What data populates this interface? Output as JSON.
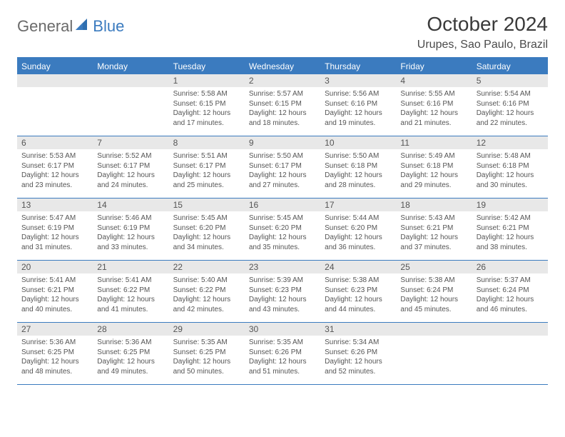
{
  "logo": {
    "text1": "General",
    "text2": "Blue"
  },
  "title": "October 2024",
  "location": "Urupes, Sao Paulo, Brazil",
  "colors": {
    "accent": "#3b7bbf",
    "header_bg": "#3b7bbf",
    "header_text": "#ffffff",
    "daynum_bg": "#e8e8e8",
    "body_text": "#555555",
    "page_bg": "#ffffff"
  },
  "weekdays": [
    "Sunday",
    "Monday",
    "Tuesday",
    "Wednesday",
    "Thursday",
    "Friday",
    "Saturday"
  ],
  "weeks": [
    [
      null,
      null,
      {
        "n": "1",
        "sr": "5:58 AM",
        "ss": "6:15 PM",
        "dl": "12 hours and 17 minutes."
      },
      {
        "n": "2",
        "sr": "5:57 AM",
        "ss": "6:15 PM",
        "dl": "12 hours and 18 minutes."
      },
      {
        "n": "3",
        "sr": "5:56 AM",
        "ss": "6:16 PM",
        "dl": "12 hours and 19 minutes."
      },
      {
        "n": "4",
        "sr": "5:55 AM",
        "ss": "6:16 PM",
        "dl": "12 hours and 21 minutes."
      },
      {
        "n": "5",
        "sr": "5:54 AM",
        "ss": "6:16 PM",
        "dl": "12 hours and 22 minutes."
      }
    ],
    [
      {
        "n": "6",
        "sr": "5:53 AM",
        "ss": "6:17 PM",
        "dl": "12 hours and 23 minutes."
      },
      {
        "n": "7",
        "sr": "5:52 AM",
        "ss": "6:17 PM",
        "dl": "12 hours and 24 minutes."
      },
      {
        "n": "8",
        "sr": "5:51 AM",
        "ss": "6:17 PM",
        "dl": "12 hours and 25 minutes."
      },
      {
        "n": "9",
        "sr": "5:50 AM",
        "ss": "6:17 PM",
        "dl": "12 hours and 27 minutes."
      },
      {
        "n": "10",
        "sr": "5:50 AM",
        "ss": "6:18 PM",
        "dl": "12 hours and 28 minutes."
      },
      {
        "n": "11",
        "sr": "5:49 AM",
        "ss": "6:18 PM",
        "dl": "12 hours and 29 minutes."
      },
      {
        "n": "12",
        "sr": "5:48 AM",
        "ss": "6:18 PM",
        "dl": "12 hours and 30 minutes."
      }
    ],
    [
      {
        "n": "13",
        "sr": "5:47 AM",
        "ss": "6:19 PM",
        "dl": "12 hours and 31 minutes."
      },
      {
        "n": "14",
        "sr": "5:46 AM",
        "ss": "6:19 PM",
        "dl": "12 hours and 33 minutes."
      },
      {
        "n": "15",
        "sr": "5:45 AM",
        "ss": "6:20 PM",
        "dl": "12 hours and 34 minutes."
      },
      {
        "n": "16",
        "sr": "5:45 AM",
        "ss": "6:20 PM",
        "dl": "12 hours and 35 minutes."
      },
      {
        "n": "17",
        "sr": "5:44 AM",
        "ss": "6:20 PM",
        "dl": "12 hours and 36 minutes."
      },
      {
        "n": "18",
        "sr": "5:43 AM",
        "ss": "6:21 PM",
        "dl": "12 hours and 37 minutes."
      },
      {
        "n": "19",
        "sr": "5:42 AM",
        "ss": "6:21 PM",
        "dl": "12 hours and 38 minutes."
      }
    ],
    [
      {
        "n": "20",
        "sr": "5:41 AM",
        "ss": "6:21 PM",
        "dl": "12 hours and 40 minutes."
      },
      {
        "n": "21",
        "sr": "5:41 AM",
        "ss": "6:22 PM",
        "dl": "12 hours and 41 minutes."
      },
      {
        "n": "22",
        "sr": "5:40 AM",
        "ss": "6:22 PM",
        "dl": "12 hours and 42 minutes."
      },
      {
        "n": "23",
        "sr": "5:39 AM",
        "ss": "6:23 PM",
        "dl": "12 hours and 43 minutes."
      },
      {
        "n": "24",
        "sr": "5:38 AM",
        "ss": "6:23 PM",
        "dl": "12 hours and 44 minutes."
      },
      {
        "n": "25",
        "sr": "5:38 AM",
        "ss": "6:24 PM",
        "dl": "12 hours and 45 minutes."
      },
      {
        "n": "26",
        "sr": "5:37 AM",
        "ss": "6:24 PM",
        "dl": "12 hours and 46 minutes."
      }
    ],
    [
      {
        "n": "27",
        "sr": "5:36 AM",
        "ss": "6:25 PM",
        "dl": "12 hours and 48 minutes."
      },
      {
        "n": "28",
        "sr": "5:36 AM",
        "ss": "6:25 PM",
        "dl": "12 hours and 49 minutes."
      },
      {
        "n": "29",
        "sr": "5:35 AM",
        "ss": "6:25 PM",
        "dl": "12 hours and 50 minutes."
      },
      {
        "n": "30",
        "sr": "5:35 AM",
        "ss": "6:26 PM",
        "dl": "12 hours and 51 minutes."
      },
      {
        "n": "31",
        "sr": "5:34 AM",
        "ss": "6:26 PM",
        "dl": "12 hours and 52 minutes."
      },
      null,
      null
    ]
  ],
  "labels": {
    "sunrise": "Sunrise:",
    "sunset": "Sunset:",
    "daylight": "Daylight:"
  }
}
